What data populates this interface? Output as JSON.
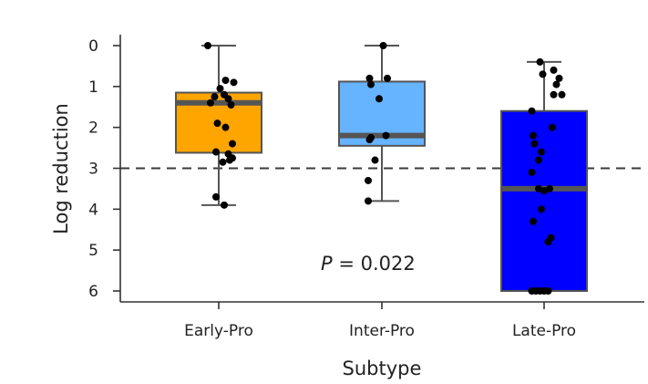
{
  "chart_data": {
    "type": "box",
    "xlabel": "Subtype",
    "ylabel": "Log reduction",
    "y_axis_inverted": true,
    "ylim": [
      0,
      6
    ],
    "yticks": [
      0,
      1,
      2,
      3,
      4,
      5,
      6
    ],
    "reference_line": {
      "y": 3,
      "style": "dashed"
    },
    "annotation": {
      "prefix": "P",
      "text": " = 0.022"
    },
    "groups": [
      {
        "name": "Early-Pro",
        "color": "#FFA500",
        "whisker_low": 0.0,
        "q1": 1.15,
        "median": 1.4,
        "q3": 2.62,
        "whisker_high": 3.9,
        "points": [
          {
            "x": -0.08,
            "y": 0.0
          },
          {
            "x": 0.05,
            "y": 0.85
          },
          {
            "x": 0.11,
            "y": 0.9
          },
          {
            "x": 0.01,
            "y": 1.05
          },
          {
            "x": -0.03,
            "y": 1.25
          },
          {
            "x": 0.04,
            "y": 1.2
          },
          {
            "x": 0.07,
            "y": 1.3
          },
          {
            "x": -0.06,
            "y": 1.4
          },
          {
            "x": 0.09,
            "y": 1.45
          },
          {
            "x": -0.01,
            "y": 1.9
          },
          {
            "x": 0.05,
            "y": 2.0
          },
          {
            "x": 0.1,
            "y": 2.4
          },
          {
            "x": -0.02,
            "y": 2.6
          },
          {
            "x": 0.07,
            "y": 2.65
          },
          {
            "x": 0.1,
            "y": 2.75
          },
          {
            "x": 0.03,
            "y": 2.85
          },
          {
            "x": 0.08,
            "y": 2.8
          },
          {
            "x": -0.02,
            "y": 3.7
          },
          {
            "x": 0.04,
            "y": 3.9
          }
        ]
      },
      {
        "name": "Inter-Pro",
        "color": "#66B3FF",
        "whisker_low": 0.0,
        "q1": 0.88,
        "median": 2.2,
        "q3": 2.45,
        "whisker_high": 3.8,
        "points": [
          {
            "x": 0.01,
            "y": 0.0
          },
          {
            "x": -0.09,
            "y": 0.8
          },
          {
            "x": 0.04,
            "y": 0.8
          },
          {
            "x": -0.08,
            "y": 0.95
          },
          {
            "x": -0.02,
            "y": 1.3
          },
          {
            "x": 0.03,
            "y": 2.2
          },
          {
            "x": -0.08,
            "y": 2.25
          },
          {
            "x": -0.09,
            "y": 2.3
          },
          {
            "x": -0.05,
            "y": 2.8
          },
          {
            "x": -0.1,
            "y": 3.3
          },
          {
            "x": -0.1,
            "y": 3.8
          }
        ]
      },
      {
        "name": "Late-Pro",
        "color": "#0000FF",
        "whisker_low": 0.4,
        "q1": 1.6,
        "median": 3.5,
        "q3": 6.0,
        "whisker_high": 6.0,
        "points": [
          {
            "x": -0.03,
            "y": 0.4
          },
          {
            "x": 0.07,
            "y": 0.6
          },
          {
            "x": -0.01,
            "y": 0.7
          },
          {
            "x": 0.11,
            "y": 0.8
          },
          {
            "x": 0.09,
            "y": 0.95
          },
          {
            "x": 0.13,
            "y": 1.2
          },
          {
            "x": 0.07,
            "y": 1.2
          },
          {
            "x": -0.09,
            "y": 1.6
          },
          {
            "x": 0.06,
            "y": 2.0
          },
          {
            "x": -0.08,
            "y": 2.2
          },
          {
            "x": -0.07,
            "y": 2.4
          },
          {
            "x": -0.02,
            "y": 2.6
          },
          {
            "x": -0.04,
            "y": 2.8
          },
          {
            "x": -0.09,
            "y": 3.1
          },
          {
            "x": -0.04,
            "y": 3.5
          },
          {
            "x": 0.0,
            "y": 3.55
          },
          {
            "x": 0.04,
            "y": 3.5
          },
          {
            "x": -0.02,
            "y": 4.0
          },
          {
            "x": -0.08,
            "y": 4.3
          },
          {
            "x": 0.05,
            "y": 4.7
          },
          {
            "x": 0.03,
            "y": 4.8
          },
          {
            "x": -0.09,
            "y": 6.0
          },
          {
            "x": -0.06,
            "y": 6.0
          },
          {
            "x": -0.03,
            "y": 6.0
          },
          {
            "x": 0.0,
            "y": 6.0
          },
          {
            "x": 0.03,
            "y": 6.0
          }
        ]
      }
    ]
  }
}
